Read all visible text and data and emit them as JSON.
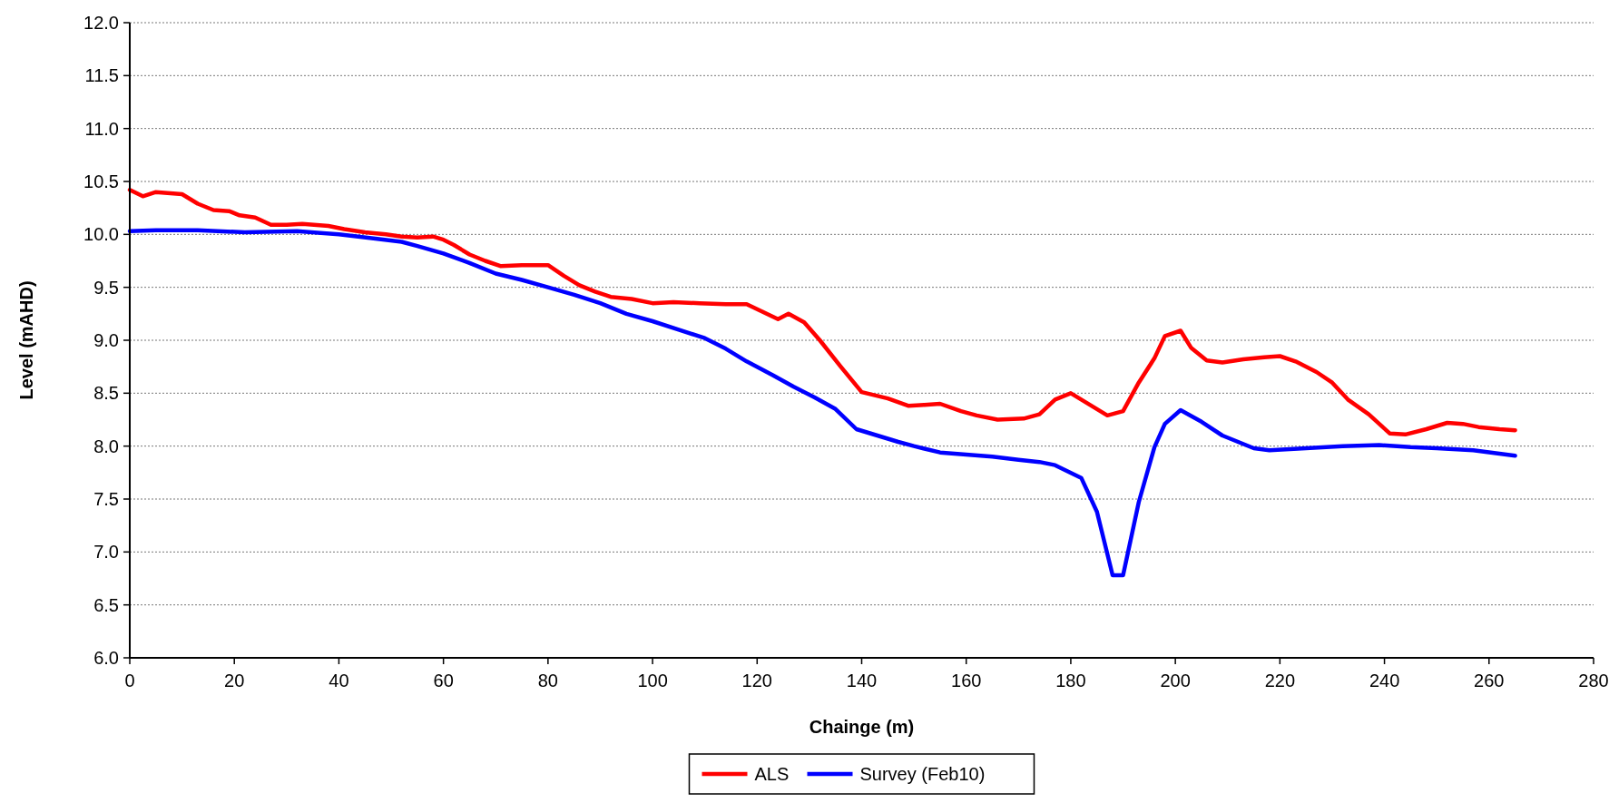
{
  "chart_data": {
    "type": "line",
    "xlabel": "Chainge (m)",
    "ylabel": "Level (mAHD)",
    "xlim": [
      0,
      280
    ],
    "xticks": [
      0,
      20,
      40,
      60,
      80,
      100,
      120,
      140,
      160,
      180,
      200,
      220,
      240,
      260,
      280
    ],
    "ylim": [
      6,
      12
    ],
    "yticks": [
      {
        "value": 6,
        "label": "6.0"
      },
      {
        "value": 6.5,
        "label": "6.5"
      },
      {
        "value": 7,
        "label": "7.0"
      },
      {
        "value": 7.5,
        "label": "7.5"
      },
      {
        "value": 8,
        "label": "8.0"
      },
      {
        "value": 8.5,
        "label": "8.5"
      },
      {
        "value": 9,
        "label": "9.0"
      },
      {
        "value": 9.5,
        "label": "9.5"
      },
      {
        "value": 10,
        "label": "10.0"
      },
      {
        "value": 10.5,
        "label": "10.5"
      },
      {
        "value": 11,
        "label": "11.0"
      },
      {
        "value": 11.5,
        "label": "11.5"
      },
      {
        "value": 12,
        "label": "12.0"
      }
    ],
    "grid": "y",
    "legend": "bottom",
    "marker": "none",
    "line_style": "solid",
    "series": [
      {
        "name": "ALS",
        "color": "#ff0000",
        "x": [
          0,
          2.5,
          5,
          10,
          13,
          16,
          19,
          21,
          24,
          27,
          30,
          33,
          38,
          41,
          45,
          49,
          52,
          55,
          58,
          60,
          62,
          65,
          68,
          71,
          75,
          80,
          83,
          86,
          89,
          92,
          96,
          100,
          104,
          109,
          114,
          118,
          121,
          124,
          126,
          129,
          132,
          136,
          140,
          145,
          149,
          152,
          155,
          159,
          162,
          166,
          171,
          174,
          177,
          180,
          183,
          187,
          190,
          193,
          196,
          198,
          201,
          203,
          206,
          209,
          213,
          217,
          220,
          223,
          227,
          230,
          233,
          237,
          241,
          244,
          248,
          252,
          255,
          258,
          262,
          265
        ],
        "values": [
          10.42,
          10.36,
          10.4,
          10.38,
          10.29,
          10.23,
          10.22,
          10.18,
          10.16,
          10.09,
          10.09,
          10.1,
          10.08,
          10.05,
          10.02,
          10,
          9.98,
          9.97,
          9.98,
          9.95,
          9.9,
          9.81,
          9.75,
          9.7,
          9.71,
          9.71,
          9.61,
          9.52,
          9.46,
          9.41,
          9.39,
          9.35,
          9.36,
          9.35,
          9.34,
          9.34,
          9.27,
          9.2,
          9.25,
          9.17,
          9,
          8.75,
          8.51,
          8.45,
          8.38,
          8.39,
          8.4,
          8.33,
          8.29,
          8.25,
          8.26,
          8.3,
          8.44,
          8.5,
          8.41,
          8.29,
          8.33,
          8.6,
          8.83,
          9.04,
          9.09,
          8.93,
          8.81,
          8.79,
          8.82,
          8.84,
          8.85,
          8.8,
          8.7,
          8.6,
          8.44,
          8.3,
          8.12,
          8.11,
          8.16,
          8.22,
          8.21,
          8.18,
          8.16,
          8.15
        ]
      },
      {
        "name": "Survey (Feb10)",
        "color": "#0000ff",
        "x": [
          0,
          5,
          13,
          22,
          32,
          40,
          47,
          52,
          55,
          60,
          65,
          70,
          75,
          80,
          85,
          90,
          95,
          100,
          105,
          110,
          114,
          118,
          123,
          127,
          131,
          135,
          139,
          143,
          147,
          150,
          155,
          160,
          165,
          170,
          174,
          177,
          182,
          185,
          188,
          190,
          193,
          196,
          198,
          201,
          205,
          209,
          215,
          218,
          225,
          232,
          239,
          245,
          250,
          257,
          265
        ],
        "values": [
          10.03,
          10.04,
          10.04,
          10.02,
          10.03,
          10,
          9.96,
          9.93,
          9.89,
          9.82,
          9.73,
          9.63,
          9.57,
          9.5,
          9.43,
          9.35,
          9.25,
          9.18,
          9.1,
          9.02,
          8.92,
          8.8,
          8.67,
          8.56,
          8.46,
          8.35,
          8.16,
          8.1,
          8.04,
          8,
          7.94,
          7.92,
          7.9,
          7.87,
          7.85,
          7.82,
          7.7,
          7.38,
          6.78,
          6.78,
          7.47,
          7.99,
          8.21,
          8.34,
          8.23,
          8.1,
          7.98,
          7.96,
          7.98,
          8,
          8.01,
          7.99,
          7.98,
          7.96,
          7.91
        ]
      }
    ]
  }
}
